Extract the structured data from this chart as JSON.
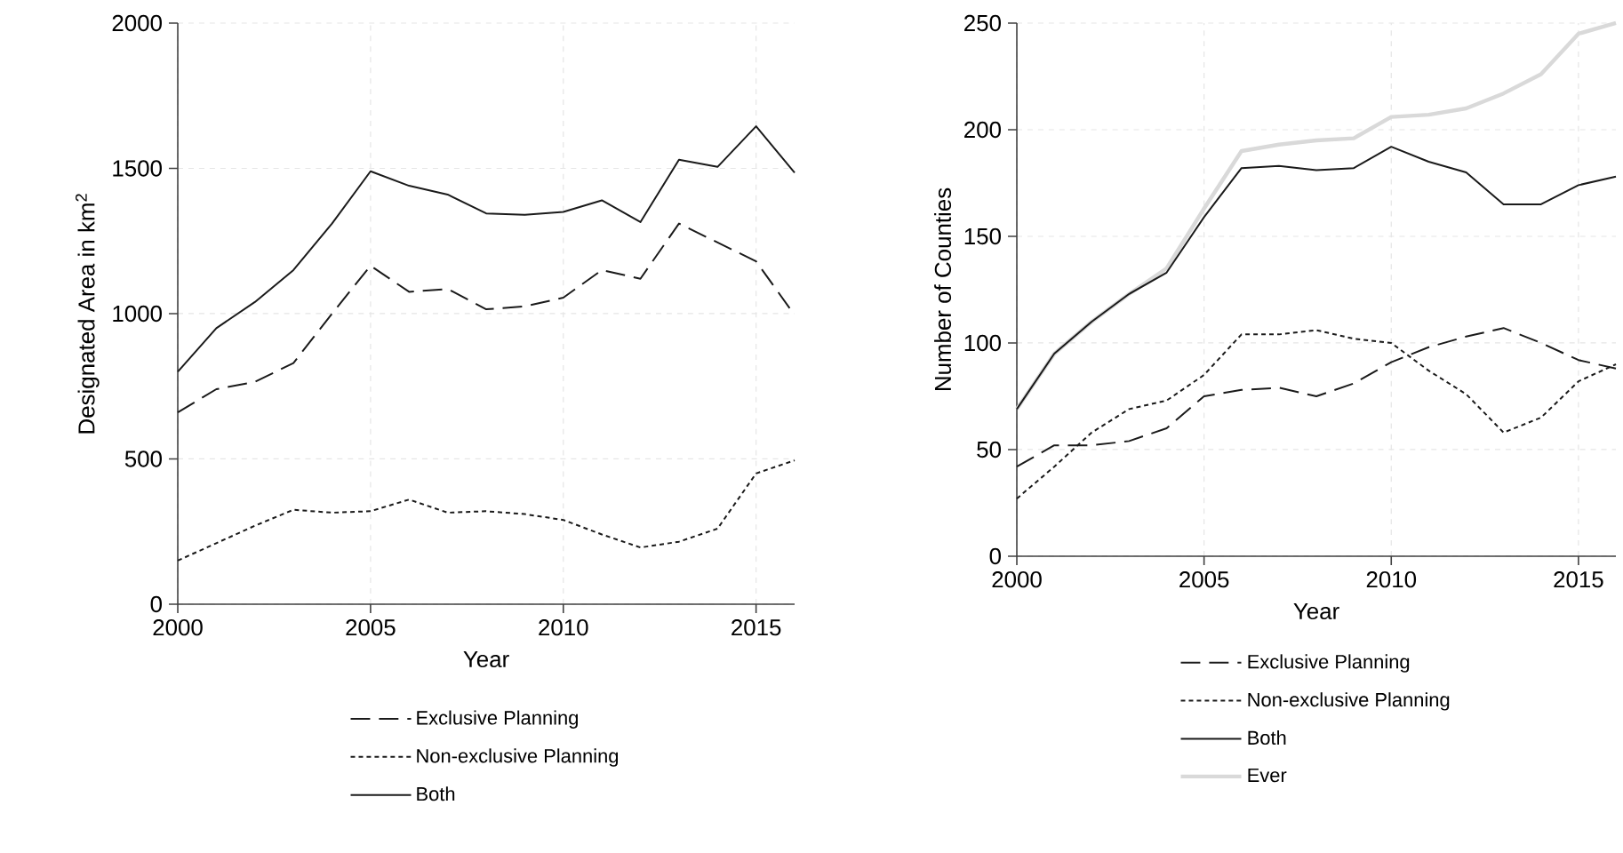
{
  "chart_data": [
    {
      "type": "line",
      "xlabel": "Year",
      "ylabel": "Designated Area in km$^{2}$",
      "x": [
        2000,
        2001,
        2002,
        2003,
        2004,
        2005,
        2006,
        2007,
        2008,
        2009,
        2010,
        2011,
        2012,
        2013,
        2014,
        2015,
        2016
      ],
      "xlim": [
        2000,
        2016
      ],
      "xticks": [
        2000,
        2005,
        2010,
        2015
      ],
      "ylim": [
        0,
        2000
      ],
      "yticks": [
        0,
        500,
        1000,
        1500,
        2000
      ],
      "grid": true,
      "legend": "bottom",
      "series": [
        {
          "name": "Exclusive Planning",
          "color": "#1a1a1a",
          "line_style": "dashed",
          "values": [
            660,
            740,
            765,
            830,
            1000,
            1165,
            1075,
            1085,
            1015,
            1025,
            1055,
            1150,
            1120,
            1310,
            1245,
            1180,
            995
          ]
        },
        {
          "name": "Non-exclusive Planning",
          "color": "#1a1a1a",
          "line_style": "dotted",
          "values": [
            150,
            210,
            270,
            325,
            315,
            320,
            360,
            315,
            320,
            310,
            290,
            240,
            195,
            215,
            260,
            450,
            495
          ]
        },
        {
          "name": "Both",
          "color": "#1a1a1a",
          "line_style": "solid",
          "values": [
            800,
            950,
            1040,
            1150,
            1310,
            1490,
            1440,
            1410,
            1345,
            1340,
            1350,
            1390,
            1315,
            1530,
            1505,
            1645,
            1485
          ]
        }
      ]
    },
    {
      "type": "line",
      "xlabel": "Year",
      "ylabel": "Number of Counties",
      "x": [
        2000,
        2001,
        2002,
        2003,
        2004,
        2005,
        2006,
        2007,
        2008,
        2009,
        2010,
        2011,
        2012,
        2013,
        2014,
        2015,
        2016
      ],
      "xlim": [
        2000,
        2016
      ],
      "xticks": [
        2000,
        2005,
        2010,
        2015
      ],
      "ylim": [
        0,
        250
      ],
      "yticks": [
        0,
        50,
        100,
        150,
        200,
        250
      ],
      "grid": true,
      "legend": "bottom",
      "series": [
        {
          "name": "Exclusive Planning",
          "color": "#1a1a1a",
          "line_style": "dashed",
          "values": [
            42,
            52,
            52,
            54,
            60,
            75,
            78,
            79,
            75,
            81,
            91,
            98,
            103,
            107,
            100,
            92,
            88
          ]
        },
        {
          "name": "Non-exclusive Planning",
          "color": "#1a1a1a",
          "line_style": "dotted",
          "values": [
            27,
            42,
            58,
            69,
            73,
            85,
            104,
            104,
            106,
            102,
            100,
            87,
            76,
            58,
            65,
            82,
            90
          ]
        },
        {
          "name": "Both",
          "color": "#1a1a1a",
          "line_style": "solid",
          "values": [
            69,
            95,
            110,
            123,
            133,
            159,
            182,
            183,
            181,
            182,
            192,
            185,
            180,
            165,
            165,
            174,
            178
          ]
        },
        {
          "name": "Ever",
          "color": "#d9d9d9",
          "line_style": "solid",
          "values": [
            69,
            95,
            110,
            123,
            135,
            163,
            190,
            193,
            195,
            196,
            206,
            207,
            210,
            217,
            226,
            245,
            250
          ]
        }
      ]
    }
  ]
}
